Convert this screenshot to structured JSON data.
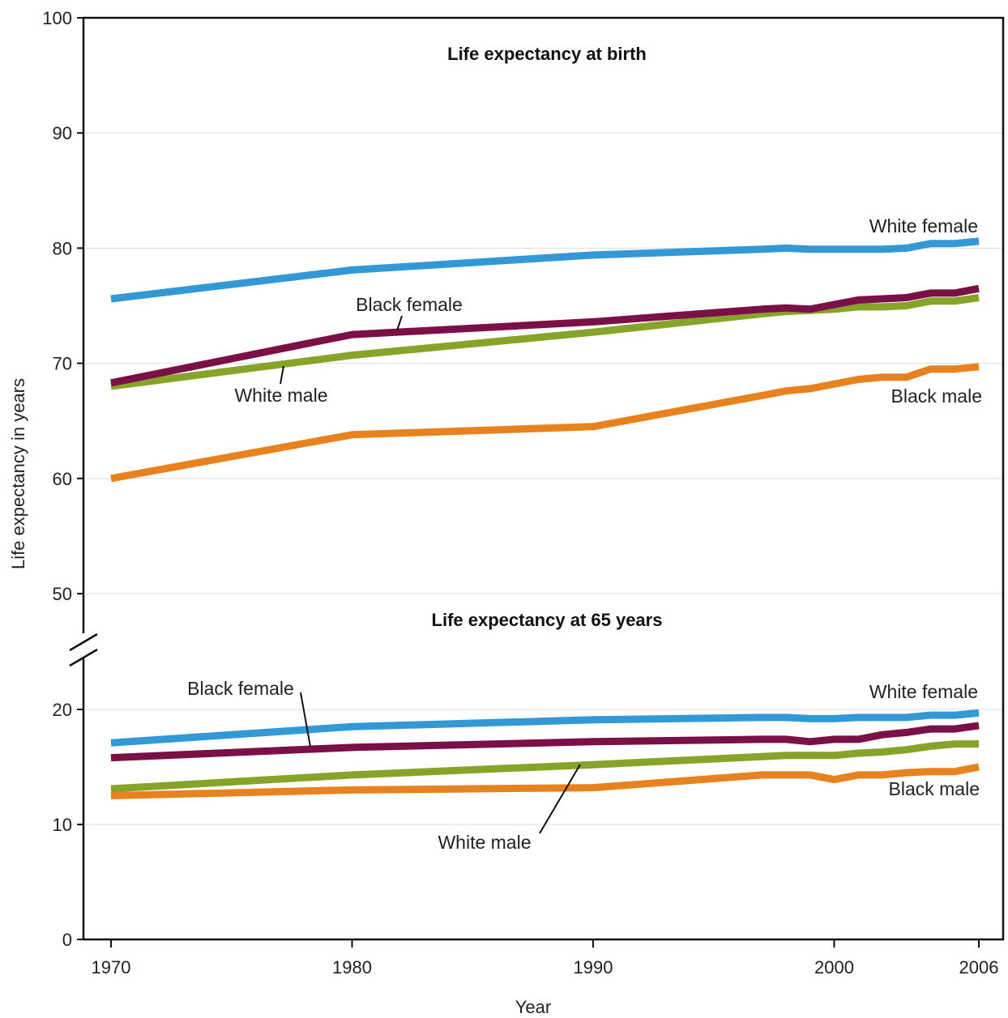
{
  "chart_data": {
    "type": "line",
    "xlabel": "Year",
    "ylabel": "Life expectancy in years",
    "x_ticks": [
      "1970",
      "1980",
      "1990",
      "2000",
      "2006"
    ],
    "xlim": [
      1970,
      2006
    ],
    "y_ticks_upper": [
      "100",
      "90",
      "80",
      "70",
      "60",
      "50"
    ],
    "y_ticks_lower": [
      "20",
      "10",
      "0"
    ],
    "ylim_upper": [
      50,
      100
    ],
    "ylim_lower": [
      0,
      20
    ],
    "axis_break": true,
    "grid": "horizontal",
    "panels": [
      {
        "title": "Life expectancy at birth",
        "series": [
          {
            "name": "White female",
            "color": "#3399d6",
            "x": [
              1970,
              1980,
              1990,
              1997,
              1998,
              1999,
              2000,
              2001,
              2002,
              2003,
              2004,
              2005,
              2006
            ],
            "values": [
              75.6,
              78.1,
              79.4,
              79.9,
              80.0,
              79.9,
              79.9,
              79.9,
              79.9,
              80.0,
              80.4,
              80.4,
              80.6
            ]
          },
          {
            "name": "Black female",
            "color": "#7b1046",
            "x": [
              1970,
              1980,
              1990,
              1997,
              1998,
              1999,
              2000,
              2001,
              2002,
              2003,
              2004,
              2005,
              2006
            ],
            "values": [
              68.3,
              72.5,
              73.6,
              74.7,
              74.8,
              74.7,
              75.1,
              75.5,
              75.6,
              75.7,
              76.1,
              76.1,
              76.5
            ]
          },
          {
            "name": "White male",
            "color": "#86a42a",
            "x": [
              1970,
              1980,
              1990,
              1997,
              1998,
              1999,
              2000,
              2001,
              2002,
              2003,
              2004,
              2005,
              2006
            ],
            "values": [
              68.0,
              70.7,
              72.7,
              74.3,
              74.5,
              74.6,
              74.7,
              74.9,
              74.9,
              75.0,
              75.4,
              75.4,
              75.7
            ]
          },
          {
            "name": "Black male",
            "color": "#e8821f",
            "x": [
              1970,
              1980,
              1990,
              1997,
              1998,
              1999,
              2000,
              2001,
              2002,
              2003,
              2004,
              2005,
              2006
            ],
            "values": [
              60.0,
              63.8,
              64.5,
              67.2,
              67.6,
              67.8,
              68.2,
              68.6,
              68.8,
              68.8,
              69.5,
              69.5,
              69.7
            ]
          }
        ]
      },
      {
        "title": "Life expectancy at 65 years",
        "series": [
          {
            "name": "White female",
            "color": "#3399d6",
            "x": [
              1970,
              1980,
              1990,
              1997,
              1998,
              1999,
              2000,
              2001,
              2002,
              2003,
              2004,
              2005,
              2006
            ],
            "values": [
              17.1,
              18.5,
              19.1,
              19.3,
              19.3,
              19.2,
              19.2,
              19.3,
              19.3,
              19.3,
              19.5,
              19.5,
              19.7
            ]
          },
          {
            "name": "Black female",
            "color": "#7b1046",
            "x": [
              1970,
              1980,
              1990,
              1997,
              1998,
              1999,
              2000,
              2001,
              2002,
              2003,
              2004,
              2005,
              2006
            ],
            "values": [
              15.8,
              16.7,
              17.2,
              17.4,
              17.4,
              17.2,
              17.4,
              17.4,
              17.8,
              18.0,
              18.3,
              18.3,
              18.6
            ]
          },
          {
            "name": "White male",
            "color": "#86a42a",
            "x": [
              1970,
              1980,
              1990,
              1997,
              1998,
              1999,
              2000,
              2001,
              2002,
              2003,
              2004,
              2005,
              2006
            ],
            "values": [
              13.1,
              14.3,
              15.2,
              15.9,
              16.0,
              16.0,
              16.0,
              16.2,
              16.3,
              16.5,
              16.8,
              17.0,
              17.0
            ]
          },
          {
            "name": "Black male",
            "color": "#e8821f",
            "x": [
              1970,
              1980,
              1990,
              1997,
              1998,
              1999,
              2000,
              2001,
              2002,
              2003,
              2004,
              2005,
              2006
            ],
            "values": [
              12.5,
              13.0,
              13.2,
              14.3,
              14.3,
              14.3,
              13.9,
              14.3,
              14.3,
              14.5,
              14.6,
              14.6,
              15.0
            ]
          }
        ]
      }
    ]
  }
}
